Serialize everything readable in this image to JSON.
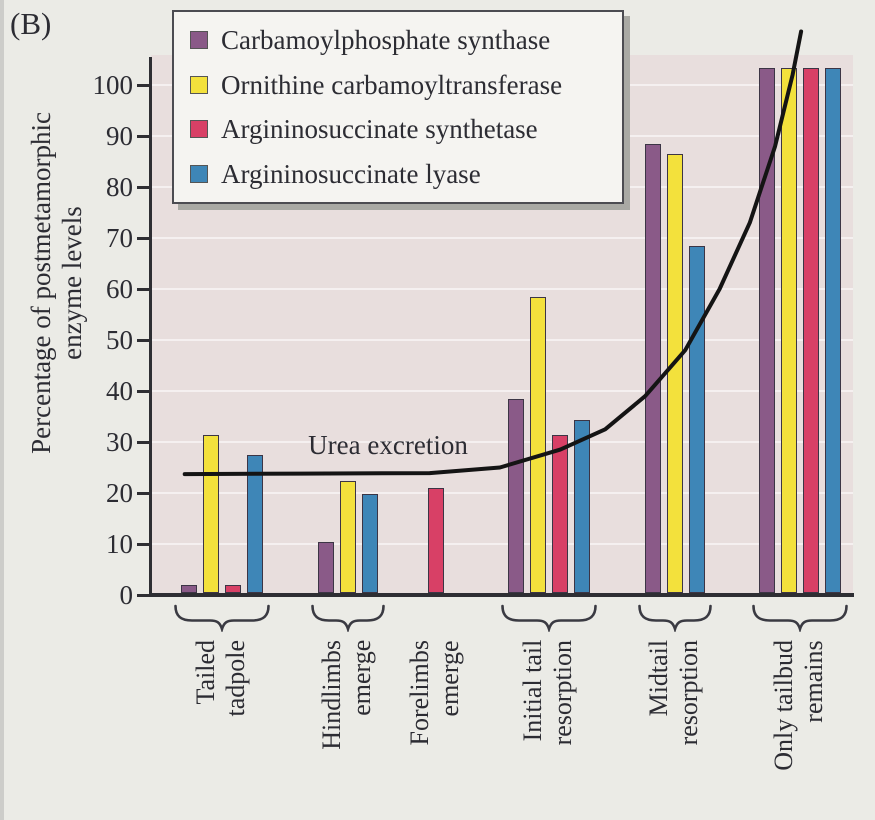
{
  "panel_label": "(B)",
  "y_axis": {
    "label": "Percentage of postmetamorphic\nenzyme levels",
    "ticks": [
      0,
      10,
      20,
      30,
      40,
      50,
      60,
      70,
      80,
      90,
      100
    ]
  },
  "annotation": "Urea excretion",
  "legend": {
    "items": [
      {
        "label": "Carbamoylphosphate synthase",
        "color": "#8a5a88"
      },
      {
        "label": "Ornithine carbamoyltransferase",
        "color": "#f3e13c"
      },
      {
        "label": "Argininosuccinate synthetase",
        "color": "#d84066"
      },
      {
        "label": "Argininosuccinate lyase",
        "color": "#3e86b7"
      }
    ]
  },
  "colors": {
    "plot_background": "#e8dedd",
    "page_background": "#ebebe6",
    "axis": "#2e2e33",
    "curve": "#141414",
    "purple": "#8a5a88",
    "yellow": "#f3e13c",
    "red": "#d84066",
    "blue": "#3e86b7"
  },
  "chart_data": {
    "type": "bar",
    "title": "",
    "xlabel": "",
    "ylabel": "Percentage of postmetamorphic enzyme levels",
    "ylim": [
      0,
      106
    ],
    "grid": "faint horizontal lines every 10",
    "legend_position": "top-left box",
    "categories": [
      {
        "label": "Tailed\ntadpole",
        "brace": true
      },
      {
        "label": "Hindlimbs\nemerge",
        "brace": true
      },
      {
        "label": "Forelimbs\nemerge",
        "brace": false
      },
      {
        "label": "Initial tail\nresorption",
        "brace": true
      },
      {
        "label": "Midtail\nresorption",
        "brace": true
      },
      {
        "label": "Only tailbud\nremains",
        "brace": true
      }
    ],
    "series": [
      {
        "name": "Carbamoylphosphate synthase",
        "color": "#8a5a88",
        "values": [
          1.5,
          10,
          0,
          38,
          88,
          103
        ]
      },
      {
        "name": "Ornithine carbamoyltransferase",
        "color": "#f3e13c",
        "values": [
          31,
          22,
          0,
          58,
          86,
          103
        ]
      },
      {
        "name": "Argininosuccinate synthetase",
        "color": "#d84066",
        "values": [
          1.5,
          0,
          20.5,
          31,
          0,
          103
        ]
      },
      {
        "name": "Argininosuccinate lyase",
        "color": "#3e86b7",
        "values": [
          27,
          19.5,
          0,
          34,
          68,
          103
        ]
      }
    ],
    "curve": {
      "name": "Urea excretion",
      "flat_level": 24,
      "points": [
        [
          0.048,
          23.7
        ],
        [
          0.212,
          23.8
        ],
        [
          0.397,
          23.9
        ],
        [
          0.497,
          25.0
        ],
        [
          0.583,
          28.5
        ],
        [
          0.647,
          32.5
        ],
        [
          0.704,
          39.0
        ],
        [
          0.761,
          48.0
        ],
        [
          0.81,
          60.0
        ],
        [
          0.853,
          73.0
        ],
        [
          0.889,
          88.0
        ],
        [
          0.914,
          102.0
        ],
        [
          0.926,
          110.5
        ]
      ]
    }
  }
}
